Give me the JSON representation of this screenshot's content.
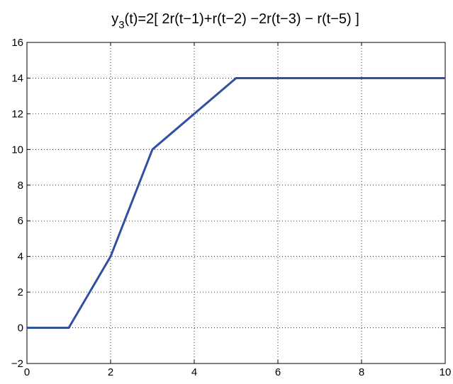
{
  "chart_data": {
    "type": "line",
    "title": {
      "main": "y",
      "subscript": "3",
      "rest": "(t)=2[ 2r(t−1)+r(t−2) −2r(t−3) − r(t−5) ]"
    },
    "xlabel": "",
    "ylabel": "",
    "xlim": [
      0,
      10
    ],
    "ylim": [
      -2,
      16
    ],
    "xticks": [
      0,
      2,
      4,
      6,
      8,
      10
    ],
    "xtick_labels": [
      "0",
      "2",
      "4",
      "6",
      "8",
      "10"
    ],
    "yticks": [
      -2,
      0,
      2,
      4,
      6,
      8,
      10,
      12,
      14,
      16
    ],
    "ytick_labels": [
      "−2",
      "0",
      "2",
      "4",
      "6",
      "8",
      "10",
      "12",
      "14",
      "16"
    ],
    "grid": true,
    "series": [
      {
        "color": "#3050a0",
        "x": [
          0,
          1,
          2,
          3,
          5,
          10
        ],
        "y": [
          0,
          0,
          4,
          10,
          14,
          14
        ]
      }
    ]
  }
}
